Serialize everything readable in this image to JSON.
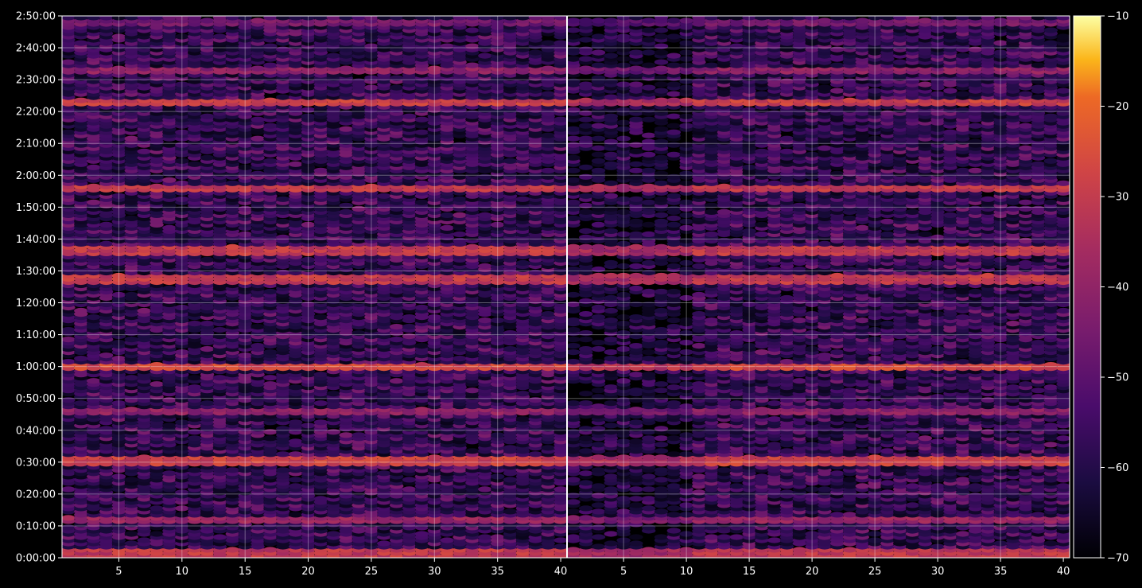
{
  "chart_data": {
    "type": "heatmap",
    "title": "",
    "xlabel": "",
    "ylabel": "",
    "panels": [
      {
        "name": "",
        "x_range": [
          1,
          40
        ]
      },
      {
        "name": "",
        "x_range": [
          41,
          80
        ]
      }
    ],
    "x_tick_labels": [
      "5",
      "10",
      "15",
      "20",
      "25",
      "30",
      "35",
      "40",
      "5",
      "10",
      "15",
      "20",
      "25",
      "30",
      "35",
      "40"
    ],
    "y_tick_labels": [
      "0:00:00",
      "0:10:00",
      "0:20:00",
      "0:30:00",
      "0:40:00",
      "0:50:00",
      "1:00:00",
      "1:10:00",
      "1:20:00",
      "1:30:00",
      "1:40:00",
      "1:50:00",
      "2:00:00",
      "2:10:00",
      "2:20:00",
      "2:30:00",
      "2:40:00",
      "2:50:00"
    ],
    "y_range_seconds": [
      0,
      10200
    ],
    "colorbar": {
      "colormap": "inferno",
      "range": [
        -70,
        -10
      ],
      "tick_labels": [
        "−10",
        "−20",
        "−30",
        "−40",
        "−50",
        "−60",
        "−70"
      ],
      "tick_values": [
        -10,
        -20,
        -30,
        -40,
        -50,
        -60,
        -70
      ]
    },
    "grid": true,
    "bright_rows_minutes": [
      {
        "t": 1.5,
        "level": -30
      },
      {
        "t": 12,
        "level": -38
      },
      {
        "t": 30.5,
        "level": -28
      },
      {
        "t": 46,
        "level": -40
      },
      {
        "t": 59.8,
        "level": -26
      },
      {
        "t": 87.5,
        "level": -30
      },
      {
        "t": 96.5,
        "level": -30
      },
      {
        "t": 116,
        "level": -30
      },
      {
        "t": 143,
        "level": -28
      },
      {
        "t": 153,
        "level": -40
      },
      {
        "t": 168,
        "level": -45
      }
    ]
  }
}
